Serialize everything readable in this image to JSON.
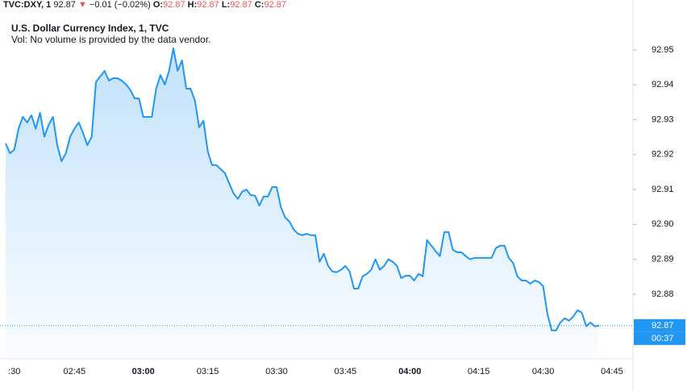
{
  "header": {
    "symbol": "TVC:DXY, 1",
    "price": 92.87,
    "arrow": "▼",
    "change": "−0.01 (−0.02%)",
    "open_label": "O:",
    "open": 92.87,
    "high_label": "H:",
    "high": 92.87,
    "low_label": "L:",
    "low": 92.87,
    "close_label": "C:",
    "close": 92.87
  },
  "chart_data": {
    "type": "line",
    "title": "U.S. Dollar Currency Index, 1, TVC",
    "subtitle": "Vol: No volume is provided by the data vendor.",
    "categories": [
      null,
      null,
      ":30",
      null,
      null,
      null,
      null,
      null,
      null,
      null,
      null,
      null,
      null,
      null,
      null,
      null,
      "02:45",
      null,
      null,
      null,
      null,
      null,
      null,
      null,
      null,
      null,
      null,
      null,
      null,
      null,
      null,
      null,
      "03:00",
      null,
      null,
      null,
      null,
      null,
      null,
      null,
      null,
      null,
      null,
      null,
      null,
      null,
      null,
      "03:15",
      null,
      null,
      null,
      null,
      null,
      null,
      null,
      null,
      null,
      null,
      null,
      null,
      null,
      null,
      null,
      "03:30",
      null,
      null,
      null,
      null,
      null,
      null,
      null,
      null,
      null,
      null,
      null,
      null,
      null,
      null,
      null,
      "03:45",
      null,
      null,
      null,
      null,
      null,
      null,
      null,
      null,
      null,
      null,
      null,
      null,
      null,
      null,
      "04:00",
      null,
      null,
      null,
      null,
      null,
      null,
      null,
      null,
      null,
      null,
      null,
      null,
      null,
      null,
      null,
      "04:15",
      null,
      null,
      null,
      null,
      null,
      null,
      null,
      null,
      null,
      null,
      null,
      null,
      null,
      null,
      "04:30",
      null,
      null,
      null,
      null,
      null,
      null,
      null,
      null,
      null,
      null,
      null,
      null,
      null,
      null,
      null,
      "04:45"
    ],
    "series": [
      {
        "name": "DXY",
        "color": "#2196f3",
        "values": [
          92.9232,
          92.9204,
          92.9214,
          92.9274,
          92.9308,
          92.9292,
          92.9313,
          92.9274,
          92.932,
          92.9251,
          92.9285,
          92.9308,
          92.9227,
          92.9181,
          92.9204,
          92.9251,
          92.9274,
          92.9292,
          92.9262,
          92.9227,
          92.9251,
          92.9408,
          92.9424,
          92.944,
          92.9412,
          92.9419,
          92.9419,
          92.9412,
          92.9401,
          92.9385,
          92.9361,
          92.9361,
          92.9308,
          92.9308,
          92.9308,
          92.9389,
          92.9428,
          92.9401,
          92.944,
          92.9505,
          92.944,
          92.947,
          92.9389,
          92.9389,
          92.9355,
          92.9278,
          92.9297,
          92.9209,
          92.917,
          92.917,
          92.9158,
          92.9147,
          92.9117,
          92.9089,
          92.9073,
          92.9094,
          92.91,
          92.9084,
          92.9082,
          92.9054,
          92.908,
          92.908,
          92.9107,
          92.9107,
          92.905,
          92.902,
          92.9008,
          92.8985,
          92.8973,
          92.8969,
          92.8973,
          92.8969,
          92.8969,
          92.8893,
          92.8916,
          92.8881,
          92.8865,
          92.8863,
          92.887,
          92.8881,
          92.8865,
          92.8816,
          92.8816,
          92.8851,
          92.8858,
          92.887,
          92.89,
          92.887,
          92.8881,
          92.89,
          92.8893,
          92.8881,
          92.8846,
          92.8853,
          92.8853,
          92.8839,
          92.8858,
          92.8851,
          92.8955,
          92.8939,
          92.8923,
          92.8909,
          92.8978,
          92.8978,
          92.8927,
          92.892,
          92.892,
          92.8909,
          92.89,
          92.8904,
          92.8904,
          92.8904,
          92.8904,
          92.8904,
          92.8932,
          92.8939,
          92.8939,
          92.8904,
          92.889,
          92.8851,
          92.8839,
          92.8839,
          92.883,
          92.8839,
          92.8835,
          92.8823,
          92.8742,
          92.8696,
          92.8696,
          92.8719,
          92.8731,
          92.8724,
          92.8736,
          92.8754,
          92.8747,
          92.8708,
          92.8719,
          92.8708,
          92.871,
          null,
          null,
          null
        ]
      }
    ],
    "ylim": [
      92.8615,
      92.9643
    ],
    "yticks": [
      {
        "value": 92.88,
        "label": "92.88"
      },
      92.89,
      {
        "value": 92.9,
        "label": "92.90"
      },
      92.91,
      92.92,
      92.93,
      92.94,
      92.95
    ],
    "last_price_label": "92.87",
    "countdown": "00:37",
    "grid": false
  }
}
